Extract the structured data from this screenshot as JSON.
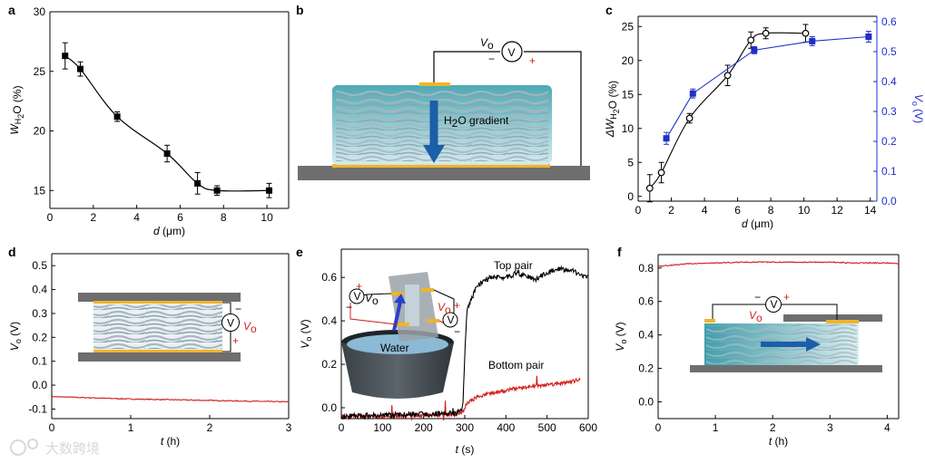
{
  "panel_letters": {
    "a": "a",
    "b": "b",
    "c": "c",
    "d": "d",
    "e": "e",
    "f": "f"
  },
  "labels": {
    "b_vo": "V",
    "b_vo_sub": "o",
    "meter": "V",
    "minus": "−",
    "plus": "+",
    "b_gradient": "H",
    "b_gradient_sub": "2",
    "b_gradient_rest": "O gradient",
    "d_vo": "V",
    "d_vo_sub": "o",
    "e_top_pair": "Top pair",
    "e_bottom_pair": "Bottom pair",
    "e_water": "Water",
    "e_vo_left": "V",
    "e_vo_left_sub": "o",
    "e_vo_right": "V",
    "e_vo_right_sub": "o",
    "f_vo": "V",
    "f_vo_sub": "o"
  },
  "watermark": "大数跨境",
  "colors": {
    "black": "#000000",
    "blue": "#1f2fc8",
    "red": "#d0201c",
    "gold": "#f0b429",
    "gray": "#6e6e6e",
    "fiber_teal": "#5fb8c2"
  },
  "chart_data": [
    {
      "panel": "a",
      "type": "line",
      "xlabel": "d (μm)",
      "ylabel": "W H2O (%)",
      "xlim": [
        0,
        11
      ],
      "ylim": [
        13.5,
        30
      ],
      "xticks": [
        0,
        2,
        4,
        6,
        8,
        10
      ],
      "yticks": [
        15,
        20,
        25,
        30
      ],
      "series": [
        {
          "x": [
            0.7,
            1.4,
            3.1,
            5.4,
            6.8,
            7.7,
            10.1
          ],
          "y": [
            26.3,
            25.2,
            21.2,
            18.1,
            15.6,
            15.0,
            15.0
          ],
          "err": [
            1.1,
            0.6,
            0.4,
            0.7,
            0.9,
            0.4,
            0.6
          ]
        }
      ]
    },
    {
      "panel": "c",
      "type": "line",
      "xlabel": "d (μm)",
      "ylabel": "ΔW H2O (%)",
      "ylabel_right": "V o (V)",
      "xlim": [
        0,
        14.4
      ],
      "ylim": [
        -0.7,
        26.5
      ],
      "ylim_right": [
        0,
        0.6
      ],
      "xticks": [
        0,
        2,
        4,
        6,
        8,
        10,
        12,
        14
      ],
      "yticks": [
        0,
        5,
        10,
        15,
        20,
        25
      ],
      "yticks_right": [
        0.0,
        0.1,
        0.2,
        0.3,
        0.4,
        0.5,
        0.6
      ],
      "series": [
        {
          "axis": "left",
          "x": [
            0.7,
            1.4,
            3.1,
            5.4,
            6.8,
            7.7,
            10.1
          ],
          "y": [
            1.2,
            3.5,
            11.5,
            17.8,
            23.0,
            24.0,
            24.0
          ],
          "err": [
            2.0,
            1.5,
            0.7,
            1.5,
            1.2,
            0.8,
            1.3
          ]
        },
        {
          "axis": "right",
          "x": [
            1.7,
            3.3,
            7.0,
            10.5,
            13.9
          ],
          "y": [
            0.21,
            0.36,
            0.505,
            0.535,
            0.55
          ],
          "err": [
            0.02,
            0.015,
            0.012,
            0.015,
            0.018
          ]
        }
      ]
    },
    {
      "panel": "d",
      "type": "line",
      "xlabel": "t (h)",
      "ylabel": "V o (V)",
      "xlim": [
        0,
        3
      ],
      "ylim": [
        -0.14,
        0.55
      ],
      "xticks": [
        0,
        1,
        2,
        3
      ],
      "yticks": [
        -0.1,
        0.0,
        0.1,
        0.2,
        0.3,
        0.4,
        0.5
      ],
      "series": [
        {
          "x": [
            0,
            0.5,
            1,
            1.5,
            2,
            2.5,
            3
          ],
          "y": [
            -0.048,
            -0.053,
            -0.058,
            -0.061,
            -0.064,
            -0.067,
            -0.07
          ]
        }
      ]
    },
    {
      "panel": "e",
      "type": "line",
      "xlabel": "t (s)",
      "ylabel": "V o (V)",
      "xlim": [
        0,
        600
      ],
      "ylim": [
        -0.05,
        0.73
      ],
      "xticks": [
        0,
        100,
        200,
        300,
        400,
        500,
        600
      ],
      "yticks": [
        0.0,
        0.2,
        0.4,
        0.6
      ],
      "series": [
        {
          "name": "Top pair",
          "x": [
            0,
            100,
            200,
            280,
            295,
            305,
            330,
            360,
            400,
            430,
            470,
            520,
            560,
            600
          ],
          "y": [
            -0.04,
            -0.035,
            -0.03,
            -0.025,
            0.0,
            0.45,
            0.56,
            0.6,
            0.6,
            0.62,
            0.59,
            0.64,
            0.63,
            0.6
          ]
        },
        {
          "name": "Bottom pair",
          "x": [
            0,
            100,
            200,
            280,
            295,
            305,
            330,
            360,
            400,
            430,
            470,
            520,
            560,
            580
          ],
          "y": [
            -0.04,
            -0.04,
            -0.035,
            -0.03,
            -0.02,
            0.02,
            0.05,
            0.065,
            0.08,
            0.09,
            0.1,
            0.11,
            0.12,
            0.13
          ]
        }
      ]
    },
    {
      "panel": "f",
      "type": "line",
      "xlabel": "t (h)",
      "ylabel": "V o (V)",
      "xlim": [
        0,
        4.2
      ],
      "ylim": [
        -0.1,
        0.88
      ],
      "xticks": [
        0,
        1,
        2,
        3,
        4
      ],
      "yticks": [
        0.0,
        0.2,
        0.4,
        0.6,
        0.8
      ],
      "series": [
        {
          "x": [
            0,
            0.5,
            1,
            1.5,
            2,
            2.5,
            3,
            3.5,
            4,
            4.2
          ],
          "y": [
            0.81,
            0.825,
            0.83,
            0.835,
            0.835,
            0.835,
            0.835,
            0.83,
            0.83,
            0.825
          ]
        }
      ]
    }
  ]
}
